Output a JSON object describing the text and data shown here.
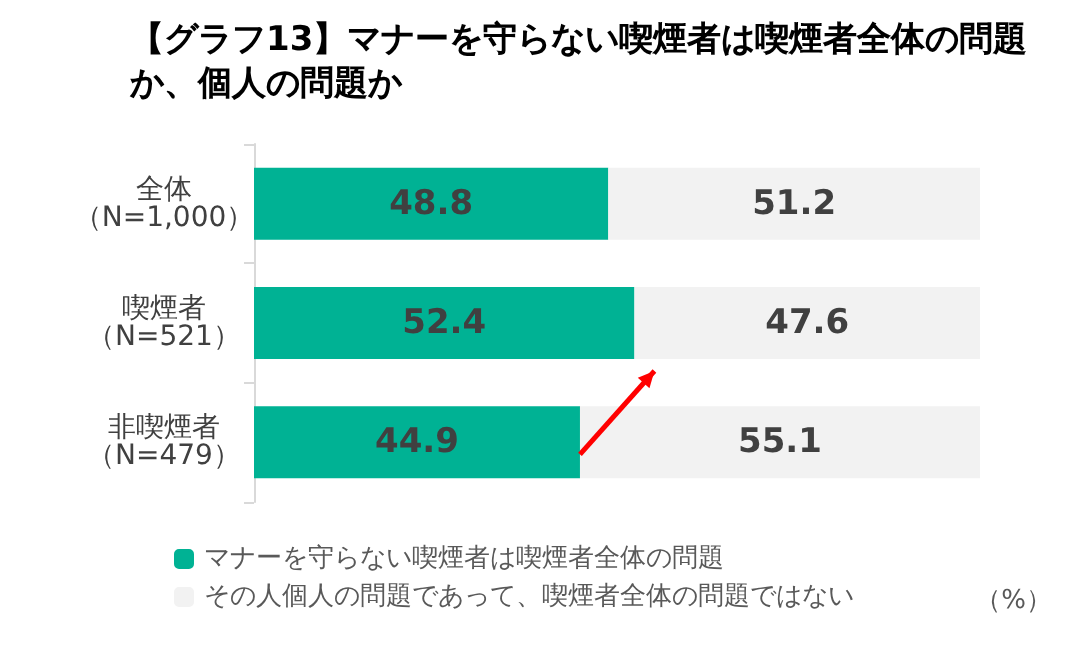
{
  "chart_data": {
    "type": "bar",
    "orientation": "horizontal",
    "stacked": true,
    "title": "【グラフ13】マナーを守らない喫煙者は喫煙者全体の問題か、個人の問題か",
    "categories": [
      "全体（N=1,000）",
      "喫煙者（N=521）",
      "非喫煙者（N=479）"
    ],
    "series": [
      {
        "name": "マナーを守らない喫煙者は喫煙者全体の問題",
        "color": "#00b294",
        "values": [
          48.8,
          52.4,
          44.9
        ]
      },
      {
        "name": "その人個人の問題であって、喫煙者全体の問題ではない",
        "color": "#f2f2f2",
        "values": [
          51.2,
          47.6,
          55.1
        ]
      }
    ],
    "xlim": [
      0,
      100
    ],
    "tick_labels": "y",
    "data_labels": true,
    "legend": "bottom left",
    "grid": false,
    "annotations": [
      "（%）"
    ]
  }
}
